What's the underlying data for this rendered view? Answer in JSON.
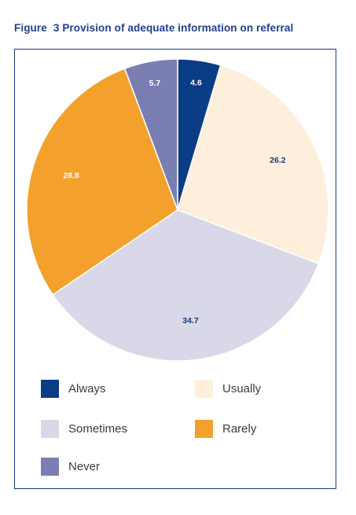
{
  "figure_title": {
    "prefix": "Figure",
    "number": "3",
    "text": "Provision of adequate information on referral"
  },
  "chart_data": {
    "type": "pie",
    "title": "Provision of adequate information on referral",
    "slices": [
      {
        "label": "Always",
        "value": 4.6,
        "color": "#0b3d86",
        "label_color": "#ffffff"
      },
      {
        "label": "Usually",
        "value": 26.2,
        "color": "#fdefdc",
        "label_color": "#1d3a7a"
      },
      {
        "label": "Sometimes",
        "value": 34.7,
        "color": "#d8d8e8",
        "label_color": "#1d3a7a"
      },
      {
        "label": "Rarely",
        "value": 28.8,
        "color": "#f3a12c",
        "label_color": "#ffffff"
      },
      {
        "label": "Never",
        "value": 5.7,
        "color": "#7b7eb2",
        "label_color": "#ffffff"
      }
    ],
    "legend_position": "bottom"
  }
}
